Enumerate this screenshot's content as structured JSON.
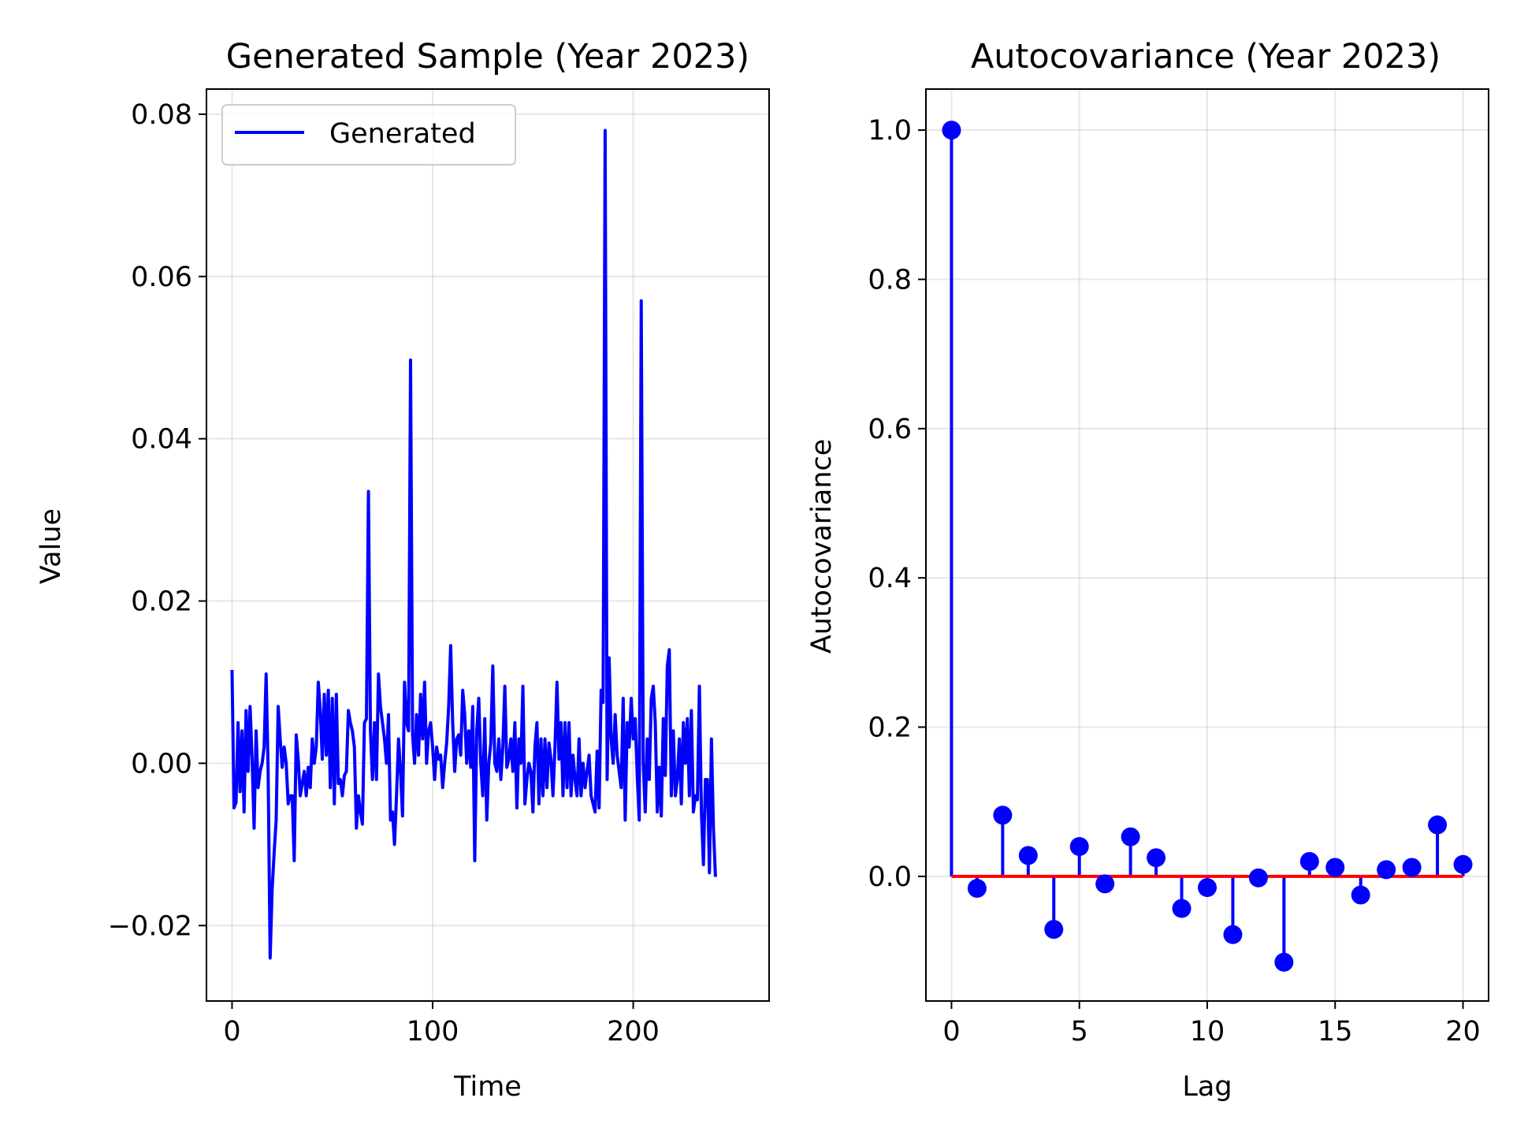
{
  "colors": {
    "series": "#0000ff",
    "baseline": "#ff0000",
    "grid": "#b0b0b0"
  },
  "chart_data": [
    {
      "type": "line",
      "title": "Generated Sample (Year 2023)",
      "xlabel": "Time",
      "ylabel": "Value",
      "xlim": [
        -12.75,
        267.75
      ],
      "ylim": [
        -0.0293,
        0.0831
      ],
      "xticks": [
        0,
        100,
        200
      ],
      "xtick_labels": [
        "0",
        "100",
        "200"
      ],
      "yticks": [
        -0.02,
        0.0,
        0.02,
        0.04,
        0.06,
        0.08
      ],
      "ytick_labels": [
        "−0.02",
        "0.00",
        "0.02",
        "0.04",
        "0.06",
        "0.08"
      ],
      "grid": true,
      "legend": {
        "position": "upper-left",
        "entries": [
          "Generated"
        ]
      },
      "series": [
        {
          "name": "Generated",
          "x_start": 0,
          "x_step": 1,
          "values": [
            0.0115,
            -0.0055,
            -0.0048,
            0.005,
            -0.0035,
            0.004,
            -0.006,
            0.0065,
            -0.001,
            0.007,
            0.0005,
            -0.008,
            0.004,
            -0.003,
            -0.001,
            0.0,
            0.002,
            0.011,
            -0.001,
            -0.024,
            -0.0155,
            -0.011,
            -0.007,
            0.007,
            0.003,
            -0.0005,
            0.002,
            0.0,
            -0.005,
            -0.004,
            -0.004,
            -0.012,
            0.0035,
            0.0005,
            -0.004,
            -0.0025,
            -0.001,
            -0.004,
            -0.0005,
            -0.003,
            0.003,
            0.0,
            0.002,
            0.01,
            0.0065,
            0.0005,
            0.0085,
            0.001,
            0.009,
            -0.003,
            0.008,
            -0.005,
            0.0085,
            -0.0025,
            -0.002,
            -0.004,
            -0.0015,
            -0.001,
            0.0065,
            0.005,
            0.004,
            0.002,
            -0.008,
            -0.004,
            -0.006,
            -0.0075,
            0.005,
            0.0055,
            0.0335,
            0.004,
            -0.002,
            0.005,
            -0.002,
            0.011,
            0.007,
            0.005,
            0.003,
            0.0,
            0.006,
            -0.007,
            -0.006,
            -0.01,
            -0.004,
            0.003,
            -0.001,
            -0.0065,
            0.01,
            0.005,
            0.004,
            0.0497,
            0.0035,
            0.0,
            0.006,
            0.001,
            0.0085,
            0.003,
            0.01,
            0.0,
            0.004,
            0.005,
            0.002,
            -0.002,
            0.002,
            0.0005,
            0.001,
            -0.003,
            0.0,
            0.0025,
            0.007,
            0.0145,
            0.005,
            -0.001,
            0.003,
            0.0035,
            0.001,
            0.009,
            0.006,
            0.0,
            0.004,
            -0.0005,
            0.007,
            -0.012,
            0.004,
            0.008,
            0.0,
            -0.004,
            0.0055,
            -0.007,
            0.0,
            0.0025,
            0.012,
            0.0,
            -0.001,
            0.003,
            -0.002,
            0.002,
            0.0095,
            -0.0005,
            0.0005,
            0.003,
            -0.001,
            0.005,
            -0.0055,
            0.003,
            0.0,
            0.0095,
            -0.005,
            -0.002,
            0.0,
            -0.001,
            -0.006,
            0.002,
            0.005,
            -0.005,
            0.003,
            -0.004,
            0.003,
            -0.003,
            0.0025,
            0.0005,
            -0.004,
            0.002,
            0.01,
            0.0005,
            0.005,
            -0.004,
            0.005,
            -0.003,
            0.005,
            -0.004,
            0.001,
            -0.002,
            -0.004,
            0.003,
            -0.004,
            0.0,
            -0.003,
            -0.001,
            0.001,
            -0.004,
            -0.005,
            -0.006,
            0.0015,
            -0.0055,
            0.009,
            0.0075,
            0.078,
            -0.002,
            0.013,
            0.003,
            0.0,
            0.006,
            0.001,
            -0.001,
            -0.003,
            0.008,
            -0.007,
            0.005,
            0.002,
            0.008,
            0.003,
            0.0055,
            -0.0015,
            -0.007,
            0.057,
            0.0,
            -0.006,
            0.003,
            -0.002,
            0.008,
            0.0095,
            0.005,
            -0.006,
            -0.0005,
            -0.0065,
            0.0055,
            -0.0015,
            0.012,
            0.014,
            -0.004,
            0.004,
            -0.004,
            -0.002,
            0.003,
            -0.005,
            0.005,
            0.0,
            0.0055,
            -0.004,
            0.0065,
            -0.006,
            -0.004,
            -0.0045,
            0.0095,
            -0.006,
            -0.0125,
            -0.002,
            -0.002,
            -0.0135,
            0.003,
            -0.008,
            -0.014
          ]
        }
      ]
    },
    {
      "type": "stem",
      "title": "Autocovariance (Year 2023)",
      "xlabel": "Lag",
      "ylabel": "Autocovariance",
      "xlim": [
        -1,
        21
      ],
      "ylim": [
        -0.167,
        1.055
      ],
      "xticks": [
        0,
        5,
        10,
        15,
        20
      ],
      "xtick_labels": [
        "0",
        "5",
        "10",
        "15",
        "20"
      ],
      "yticks": [
        0.0,
        0.2,
        0.4,
        0.6,
        0.8,
        1.0
      ],
      "ytick_labels": [
        "0.0",
        "0.2",
        "0.4",
        "0.6",
        "0.8",
        "1.0"
      ],
      "grid": true,
      "baseline": 0,
      "x": [
        0,
        1,
        2,
        3,
        4,
        5,
        6,
        7,
        8,
        9,
        10,
        11,
        12,
        13,
        14,
        15,
        16,
        17,
        18,
        19,
        20
      ],
      "values": [
        1.0,
        -0.016,
        0.082,
        0.028,
        -0.071,
        0.04,
        -0.01,
        0.053,
        0.025,
        -0.043,
        -0.015,
        -0.078,
        -0.002,
        -0.115,
        0.02,
        0.012,
        -0.025,
        0.009,
        0.012,
        0.069,
        0.016
      ]
    }
  ]
}
